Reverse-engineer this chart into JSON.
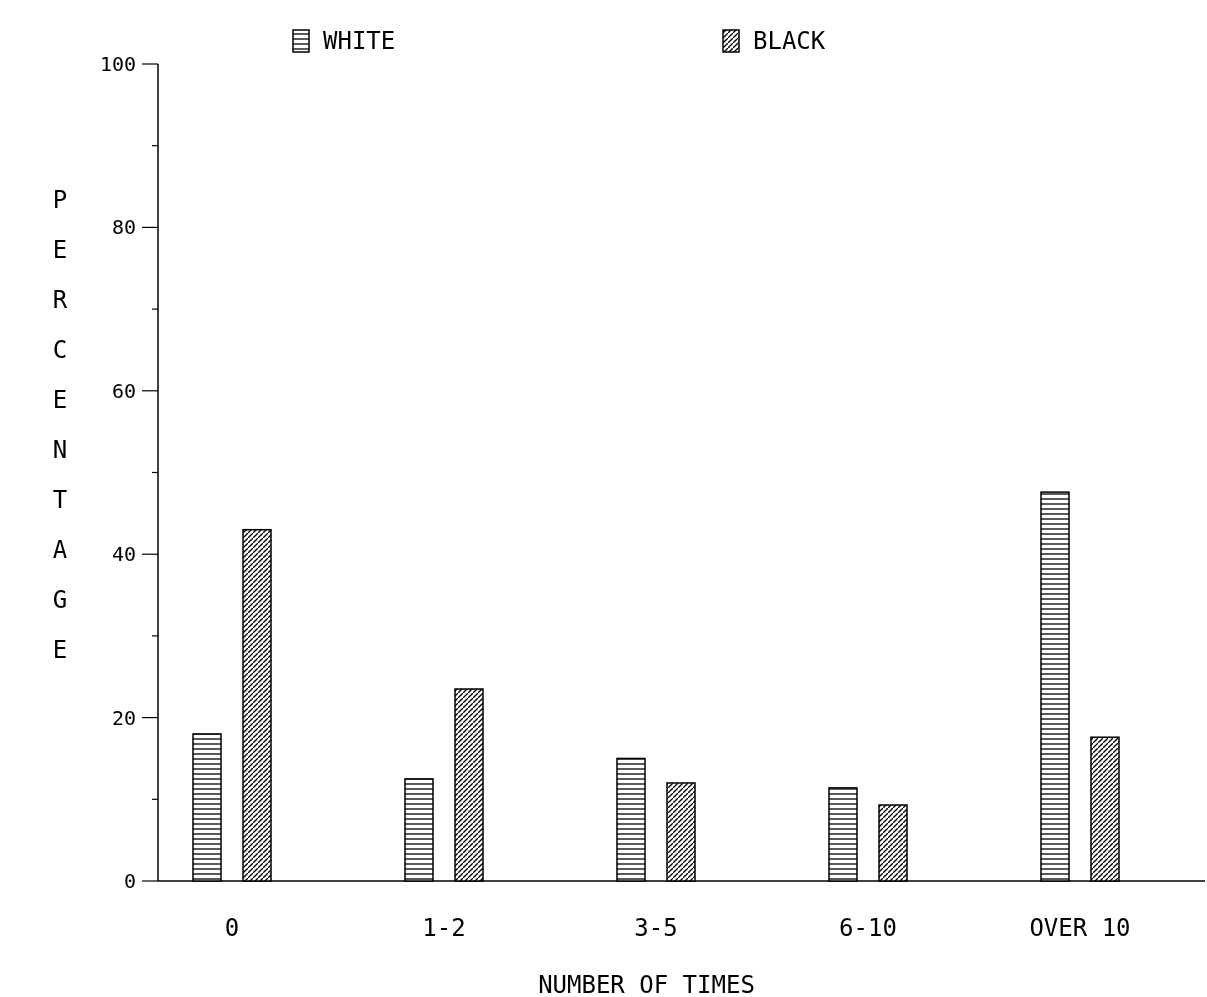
{
  "chart_data": {
    "type": "bar",
    "xlabel": "NUMBER OF TIMES",
    "ylabel": "PERCENTAGE",
    "categories": [
      "0",
      "1-2",
      "3-5",
      "6-10",
      "OVER 10"
    ],
    "series": [
      {
        "name": "WHITE",
        "color": "#000000",
        "values": [
          18,
          12.5,
          15,
          11.4,
          47.6
        ]
      },
      {
        "name": "BLACK",
        "color": "#000000",
        "values": [
          43,
          23.5,
          12,
          9.3,
          17.6
        ]
      }
    ],
    "ylim": [
      0,
      100
    ],
    "yticks": [
      0,
      {
        "value": 10,
        "label": null
      },
      20,
      {
        "value": 30,
        "label": null
      },
      40,
      {
        "value": 50,
        "label": null
      },
      60,
      {
        "value": 70,
        "label": null
      },
      80,
      {
        "value": 90,
        "label": null
      },
      100
    ],
    "legend": "top"
  }
}
